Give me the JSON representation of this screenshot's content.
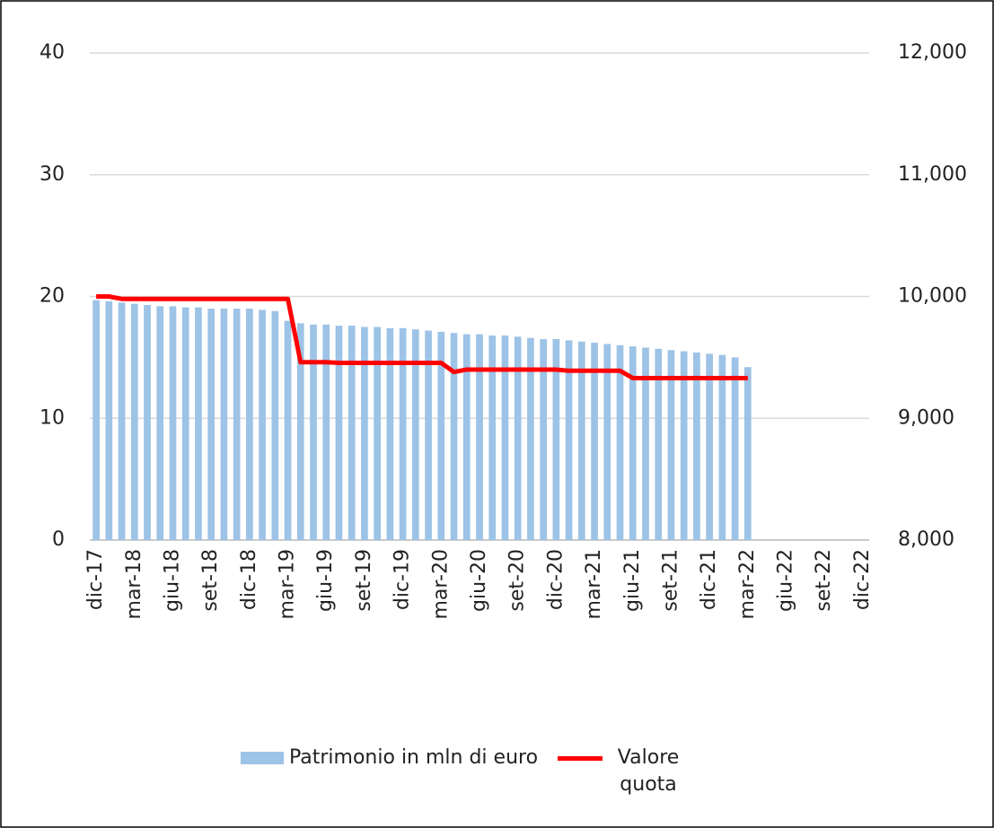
{
  "chart_data": {
    "type": "bar",
    "categories": [
      "dic-17",
      null,
      null,
      "mar-18",
      null,
      null,
      "giu-18",
      null,
      null,
      "set-18",
      null,
      null,
      "dic-18",
      null,
      null,
      "mar-19",
      null,
      null,
      "giu-19",
      null,
      null,
      "set-19",
      null,
      null,
      "dic-19",
      null,
      null,
      "mar-20",
      null,
      null,
      "giu-20",
      null,
      null,
      "set-20",
      null,
      null,
      "dic-20",
      null,
      null,
      "mar-21",
      null,
      null,
      "giu-21",
      null,
      null,
      "set-21",
      null,
      null,
      "dic-21",
      null,
      null,
      "mar-22",
      null,
      null,
      "giu-22",
      null,
      null,
      "set-22",
      null,
      null,
      "dic-22"
    ],
    "series": [
      {
        "name": "Patrimonio in mln di euro",
        "type": "bar",
        "color": "#9dc3e6",
        "values": [
          19.7,
          19.6,
          19.5,
          19.4,
          19.3,
          19.2,
          19.2,
          19.1,
          19.1,
          19.0,
          19.0,
          19.0,
          19.0,
          18.9,
          18.8,
          18.0,
          17.8,
          17.7,
          17.7,
          17.6,
          17.6,
          17.5,
          17.5,
          17.4,
          17.4,
          17.3,
          17.2,
          17.1,
          17.0,
          16.9,
          16.9,
          16.8,
          16.8,
          16.7,
          16.6,
          16.5,
          16.5,
          16.4,
          16.3,
          16.2,
          16.1,
          16.0,
          15.9,
          15.8,
          15.7,
          15.6,
          15.5,
          15.4,
          15.3,
          15.2,
          15.0,
          14.2,
          null,
          null,
          null,
          null,
          null,
          null,
          null,
          null,
          null
        ]
      },
      {
        "name": "Valore quota",
        "type": "line",
        "axis": "y2",
        "color": "#ff0000",
        "values": [
          10000,
          10000,
          9980,
          9980,
          9980,
          9980,
          9980,
          9980,
          9980,
          9980,
          9980,
          9980,
          9980,
          9980,
          9980,
          9980,
          9460,
          9460,
          9460,
          9455,
          9455,
          9455,
          9455,
          9455,
          9455,
          9455,
          9455,
          9455,
          9380,
          9400,
          9400,
          9400,
          9400,
          9400,
          9400,
          9400,
          9400,
          9390,
          9390,
          9390,
          9390,
          9390,
          9330,
          9330,
          9330,
          9330,
          9330,
          9330,
          9330,
          9330,
          9330,
          9330,
          null,
          null,
          null,
          null,
          null,
          null,
          null,
          null,
          null
        ]
      }
    ],
    "ylim": [
      0,
      40
    ],
    "yticks": [
      0,
      10,
      20,
      30,
      40
    ],
    "y2lim": [
      8000,
      12000
    ],
    "y2ticks": [
      {
        "value": 8000,
        "label": "8,000"
      },
      {
        "value": 9000,
        "label": "9,000"
      },
      {
        "value": 10000,
        "label": "10,000"
      },
      {
        "value": 11000,
        "label": "11,000"
      },
      {
        "value": 12000,
        "label": "12,000"
      }
    ],
    "grid": true,
    "legend": "bottom"
  }
}
